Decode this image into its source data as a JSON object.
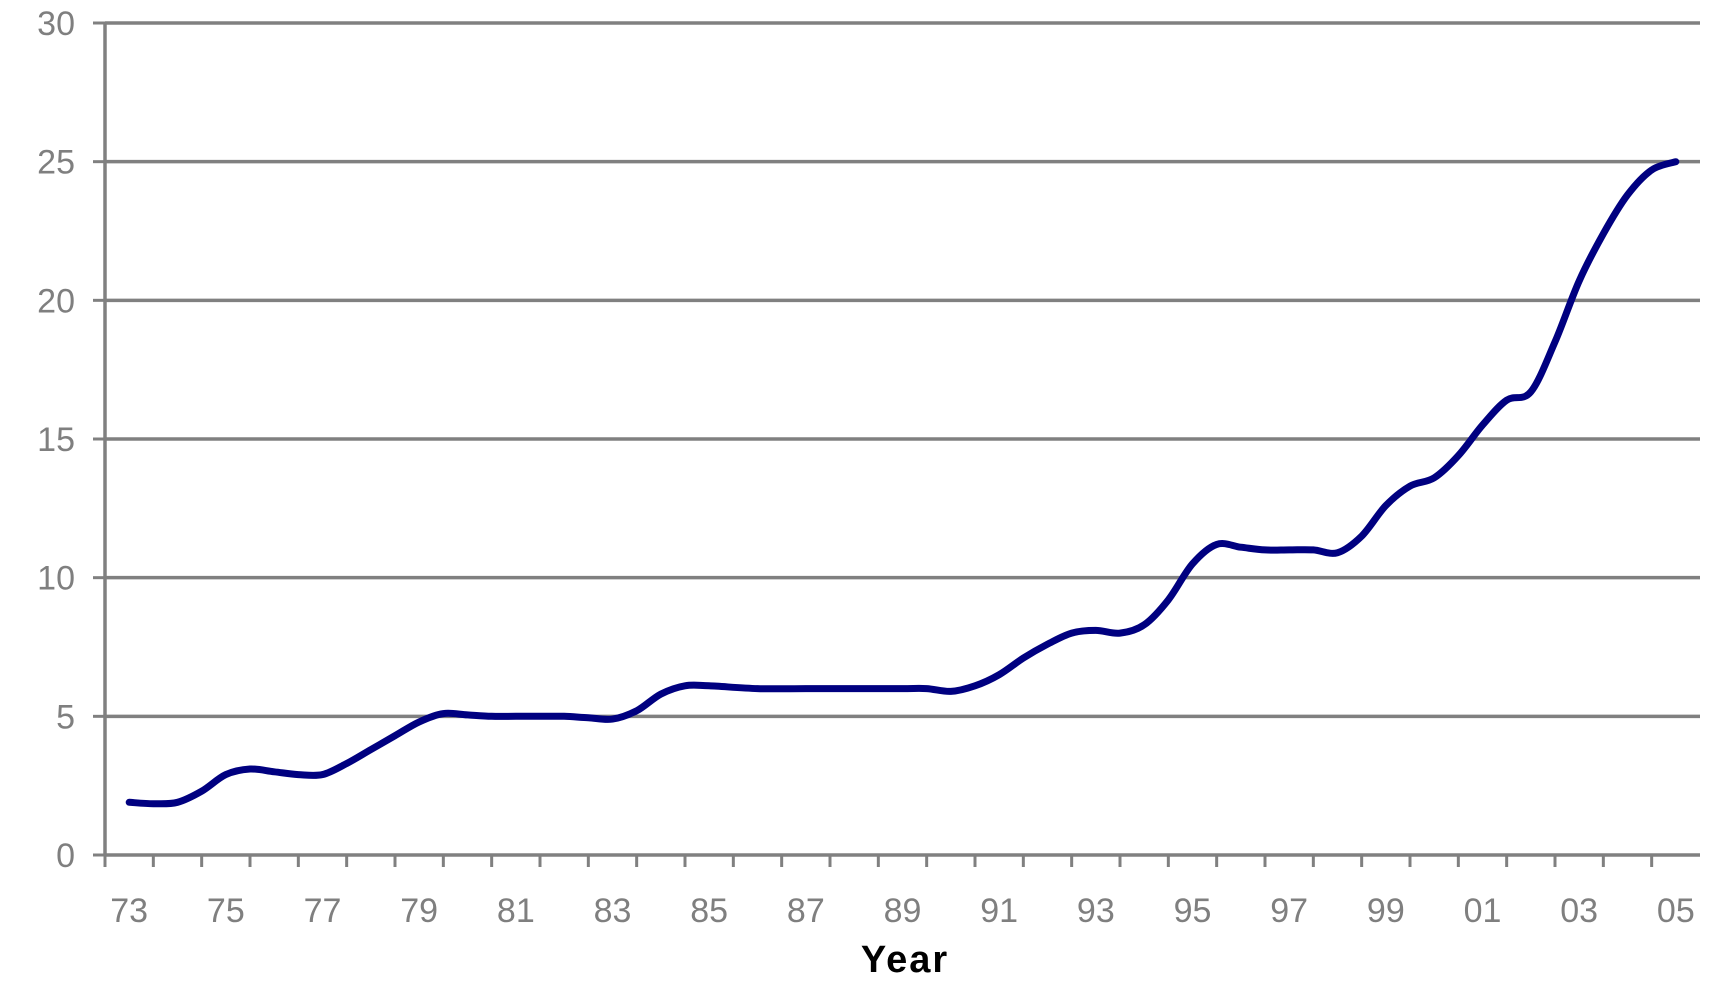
{
  "chart_data": {
    "type": "line",
    "title": "",
    "xlabel": "Year",
    "ylabel": "",
    "ylim": [
      0,
      30
    ],
    "xlim": [
      1972.5,
      2005.5
    ],
    "grid": true,
    "legend": "none",
    "y_ticks": [
      "0",
      "5",
      "10",
      "15",
      "20",
      "25",
      "30"
    ],
    "x_ticks": [
      "73",
      "75",
      "77",
      "79",
      "81",
      "83",
      "85",
      "87",
      "89",
      "91",
      "93",
      "95",
      "97",
      "99",
      "01",
      "03",
      "05"
    ],
    "x_tick_years": [
      1973,
      1975,
      1977,
      1979,
      1981,
      1983,
      1985,
      1987,
      1989,
      1991,
      1993,
      1995,
      1997,
      1999,
      2001,
      2003,
      2005
    ],
    "line_color": "#000080",
    "grid_color": "#808080",
    "series": [
      {
        "x": [
          1973.0,
          1973.5,
          1974.0,
          1974.5,
          1975.0,
          1975.5,
          1976.0,
          1976.5,
          1977.0,
          1977.5,
          1978.0,
          1978.5,
          1979.0,
          1979.5,
          1980.0,
          1980.5,
          1981.0,
          1981.5,
          1982.0,
          1982.5,
          1983.0,
          1983.5,
          1984.0,
          1984.5,
          1985.0,
          1986.0,
          1987.0,
          1988.0,
          1989.0,
          1989.5,
          1990.0,
          1990.5,
          1991.0,
          1991.5,
          1992.0,
          1992.5,
          1993.0,
          1993.5,
          1994.0,
          1994.5,
          1995.0,
          1995.5,
          1996.0,
          1996.5,
          1997.0,
          1997.5,
          1998.0,
          1998.5,
          1999.0,
          1999.5,
          2000.0,
          2000.5,
          2001.0,
          2001.5,
          2002.0,
          2002.5,
          2003.0,
          2003.5,
          2004.0,
          2004.5,
          2005.0
        ],
        "y": [
          1.9,
          1.85,
          1.9,
          2.3,
          2.9,
          3.1,
          3.0,
          2.9,
          2.9,
          3.3,
          3.8,
          4.3,
          4.8,
          5.1,
          5.05,
          5.0,
          5.0,
          5.0,
          5.0,
          4.95,
          4.9,
          5.2,
          5.8,
          6.1,
          6.1,
          6.0,
          6.0,
          6.0,
          6.0,
          6.0,
          5.9,
          6.1,
          6.5,
          7.1,
          7.6,
          8.0,
          8.1,
          8.0,
          8.3,
          9.2,
          10.5,
          11.2,
          11.1,
          11.0,
          11.0,
          11.0,
          10.9,
          11.5,
          12.6,
          13.3,
          13.6,
          14.4,
          15.5,
          16.4,
          16.7,
          18.5,
          20.7,
          22.4,
          23.8,
          24.7,
          25.0
        ]
      }
    ]
  }
}
